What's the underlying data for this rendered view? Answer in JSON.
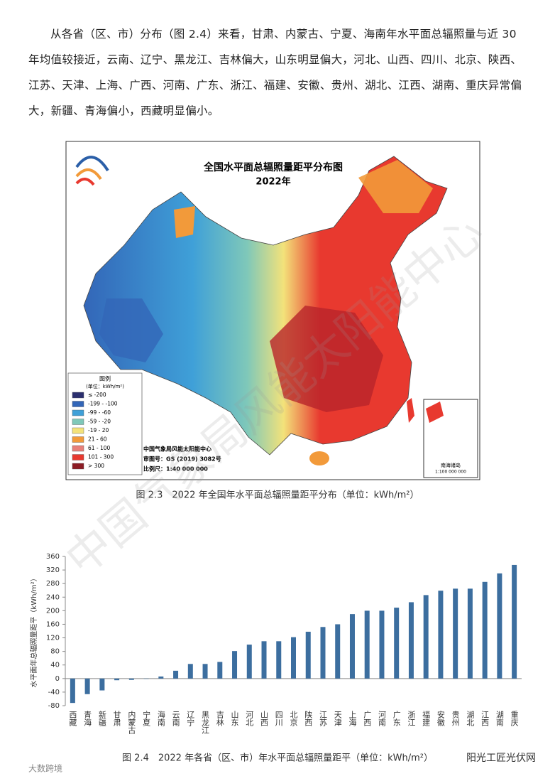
{
  "paragraph": "从各省（区、市）分布（图 2.4）来看，甘肃、内蒙古、宁夏、海南年水平面总辐照量与近 30 年均值较接近，云南、辽宁、黑龙江、吉林偏大，山东明显偏大，河北、山西、四川、北京、陕西、江苏、天津、上海、广西、河南、广东、浙江、福建、安徽、贵州、湖北、江西、湖南、重庆异常偏大，新疆、青海偏小，西藏明显偏小。",
  "map": {
    "title": "全国水平面总辐照量距平分布图",
    "year": "2022年",
    "legend": {
      "title": "图例",
      "unit": "(单位：kWh/m²)",
      "items": [
        {
          "label": "≤ -200",
          "color": "#2b2f6e"
        },
        {
          "label": "-199 - -100",
          "color": "#3366b8"
        },
        {
          "label": "-99 - -60",
          "color": "#3fa0d8"
        },
        {
          "label": "-59 - -20",
          "color": "#7fc8b9"
        },
        {
          "label": "-19 - 20",
          "color": "#f3e27a"
        },
        {
          "label": "21 - 60",
          "color": "#f29a3a"
        },
        {
          "label": "61 - 100",
          "color": "#e8807a"
        },
        {
          "label": "101 - 300",
          "color": "#e8392f"
        },
        {
          "label": "> 300",
          "color": "#8c1c24"
        }
      ]
    },
    "credit": "中国气象局风能太阳能中心",
    "approval": "审图号：GS (2019) 3082号",
    "scale": "比例尺：1:40 000 000",
    "inset_title": "南海诸岛",
    "inset_scale": "1:100 000 000"
  },
  "figure_1_caption": "图 2.3　2022 年全国年水平面总辐照量距平分布（单位：kWh/m²）",
  "chart_data": {
    "type": "bar",
    "y_label": "水平面年总辐照量距平（kWh/m²）",
    "categories": [
      "西藏",
      "青海",
      "新疆",
      "甘肃",
      "内蒙古",
      "宁夏",
      "海南",
      "云南",
      "辽宁",
      "黑龙江",
      "吉林",
      "山东",
      "河北",
      "山西",
      "四川",
      "北京",
      "陕西",
      "江苏",
      "天津",
      "上海",
      "广西",
      "河南",
      "广东",
      "浙江",
      "福建",
      "安徽",
      "贵州",
      "湖北",
      "江西",
      "湖南",
      "重庆"
    ],
    "values": [
      -72,
      -46,
      -35,
      -5,
      -4,
      -1,
      6,
      23,
      43,
      43,
      49,
      81,
      100,
      110,
      110,
      122,
      138,
      152,
      160,
      190,
      200,
      200,
      209,
      225,
      246,
      259,
      265,
      265,
      285,
      310,
      335
    ],
    "color": "#3c6e9f",
    "ylim": [
      -80,
      360
    ],
    "yticks": [
      -80,
      -40,
      0,
      40,
      80,
      120,
      160,
      200,
      240,
      280,
      320,
      360
    ]
  },
  "figure_2_caption": "图 2.4　2022 年各省（区、市）年水平面总辐照量距平（单位：kWh/m²）",
  "watermarks": [
    "中国气象局风能太阳能中心",
    "大数跨境",
    "阳光工匠光伏网"
  ]
}
